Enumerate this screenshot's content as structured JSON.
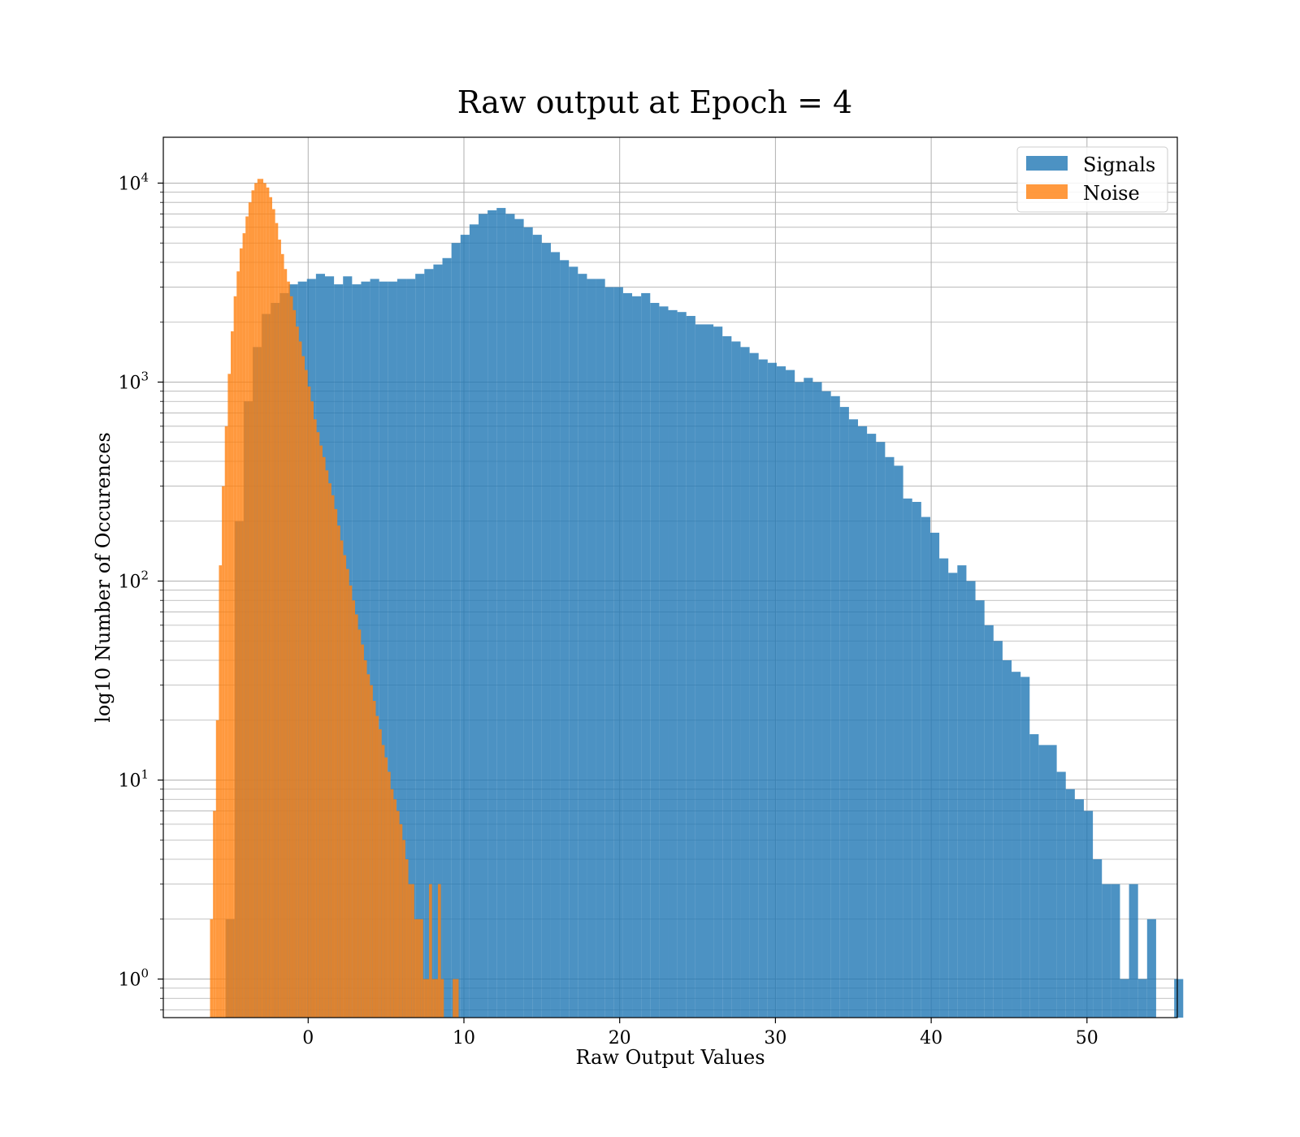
{
  "chart_data": {
    "type": "bar",
    "title": "Raw output at Epoch = 4",
    "xlabel": "Raw Output Values",
    "ylabel": "log10 Number of Occurences",
    "xlim": [
      -9.3,
      55.8
    ],
    "ylim": [
      0.64,
      17000
    ],
    "yscale": "log",
    "grid": true,
    "legend_position": "top-right",
    "x_ticks": [
      {
        "value": 0,
        "label": "0"
      },
      {
        "value": 10,
        "label": "10"
      },
      {
        "value": 20,
        "label": "20"
      },
      {
        "value": 30,
        "label": "30"
      },
      {
        "value": 40,
        "label": "40"
      },
      {
        "value": 50,
        "label": "50"
      }
    ],
    "y_ticks": [
      {
        "value": 1,
        "base": "10",
        "exp": "0"
      },
      {
        "value": 10,
        "base": "10",
        "exp": "1"
      },
      {
        "value": 100,
        "base": "10",
        "exp": "2"
      },
      {
        "value": 1000,
        "base": "10",
        "exp": "3"
      },
      {
        "value": 10000,
        "base": "10",
        "exp": "4"
      }
    ],
    "series": [
      {
        "name": "Signals",
        "color": "#1f77b4",
        "bin_start": -5.3,
        "bin_width": 0.58,
        "values": [
          2,
          200,
          800,
          1500,
          2200,
          2500,
          2800,
          3100,
          3200,
          3300,
          3500,
          3400,
          3100,
          3400,
          3100,
          3200,
          3300,
          3200,
          3200,
          3300,
          3300,
          3500,
          3700,
          3900,
          4200,
          5000,
          5500,
          6200,
          7000,
          7300,
          7500,
          7000,
          6600,
          6000,
          5500,
          5000,
          4500,
          4100,
          3800,
          3500,
          3300,
          3300,
          3000,
          3000,
          2800,
          2700,
          2800,
          2500,
          2400,
          2300,
          2250,
          2150,
          1950,
          1950,
          1900,
          1700,
          1600,
          1500,
          1400,
          1300,
          1250,
          1200,
          1150,
          1000,
          1050,
          1000,
          900,
          850,
          750,
          650,
          600,
          550,
          500,
          420,
          380,
          260,
          250,
          210,
          175,
          130,
          110,
          120,
          100,
          80,
          60,
          50,
          40,
          35,
          33,
          17,
          15,
          15,
          11,
          9,
          8,
          7,
          4,
          3,
          3,
          1,
          3,
          1,
          2,
          0,
          0,
          1
        ]
      },
      {
        "name": "Noise",
        "color": "#ff7f0e",
        "bin_start": -6.3,
        "bin_width": 0.19,
        "values": [
          2,
          7,
          20,
          120,
          300,
          600,
          1100,
          1800,
          2700,
          3600,
          4700,
          5600,
          6800,
          8000,
          9200,
          10000,
          10500,
          10500,
          10000,
          9500,
          8500,
          7400,
          6300,
          5200,
          4400,
          3700,
          3200,
          2700,
          2300,
          1900,
          1600,
          1350,
          1150,
          950,
          800,
          650,
          560,
          480,
          420,
          360,
          310,
          270,
          230,
          190,
          160,
          135,
          115,
          95,
          80,
          68,
          57,
          48,
          40,
          34,
          30,
          25,
          21,
          18,
          15,
          13,
          11,
          9,
          8,
          7,
          6,
          5,
          4,
          3,
          3,
          2,
          2,
          2,
          1,
          1,
          3,
          1,
          1,
          3,
          1,
          0,
          0,
          0,
          1,
          1
        ]
      }
    ]
  }
}
